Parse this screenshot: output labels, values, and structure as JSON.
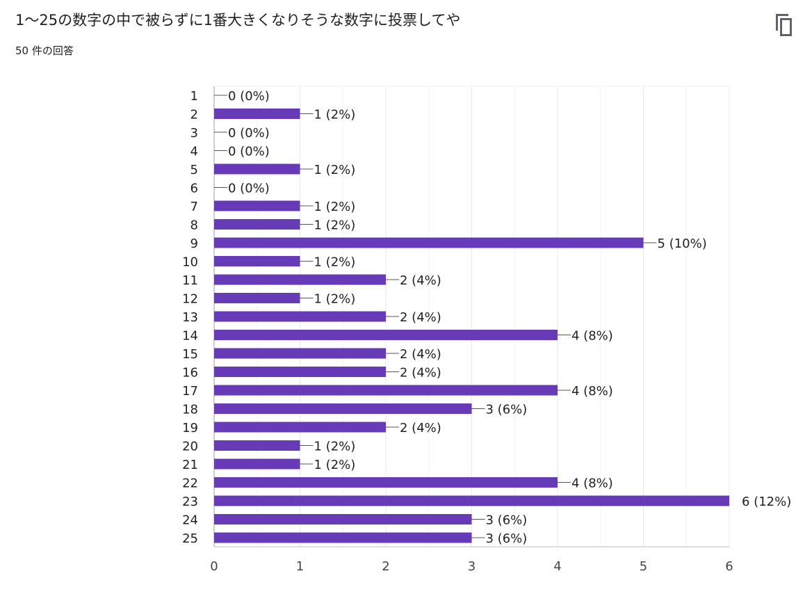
{
  "question": {
    "title": "1〜25の数字の中で被らずに1番大きくなりそうな数字に投票してや",
    "response_count": "50 件の回答"
  },
  "icons": {
    "copy": "copy-icon"
  },
  "colors": {
    "bar": "#673ab7",
    "grid": "#e8e8e8",
    "axis": "#bdbdbd",
    "text": "#202124"
  },
  "chart_data": {
    "type": "bar",
    "orientation": "horizontal",
    "categories": [
      "1",
      "2",
      "3",
      "4",
      "5",
      "6",
      "7",
      "8",
      "9",
      "10",
      "11",
      "12",
      "13",
      "14",
      "15",
      "16",
      "17",
      "18",
      "19",
      "20",
      "21",
      "22",
      "23",
      "24",
      "25"
    ],
    "values": [
      0,
      1,
      0,
      0,
      1,
      0,
      1,
      1,
      5,
      1,
      2,
      1,
      2,
      4,
      2,
      2,
      4,
      3,
      2,
      1,
      1,
      4,
      6,
      3,
      3
    ],
    "value_labels": [
      "0 (0%)",
      "1 (2%)",
      "0 (0%)",
      "0 (0%)",
      "1 (2%)",
      "0 (0%)",
      "1 (2%)",
      "1 (2%)",
      "5 (10%)",
      "1 (2%)",
      "2 (4%)",
      "1 (2%)",
      "2 (4%)",
      "4 (8%)",
      "2 (4%)",
      "2 (4%)",
      "4 (8%)",
      "3 (6%)",
      "2 (4%)",
      "1 (2%)",
      "1 (2%)",
      "4 (8%)",
      "6 (12%)",
      "3 (6%)",
      "3 (6%)"
    ],
    "x_ticks": [
      "0",
      "1",
      "2",
      "3",
      "4",
      "5",
      "6"
    ],
    "xlim": [
      0,
      6
    ],
    "title": "",
    "xlabel": "",
    "ylabel": "",
    "grid": true,
    "legend": "none"
  }
}
